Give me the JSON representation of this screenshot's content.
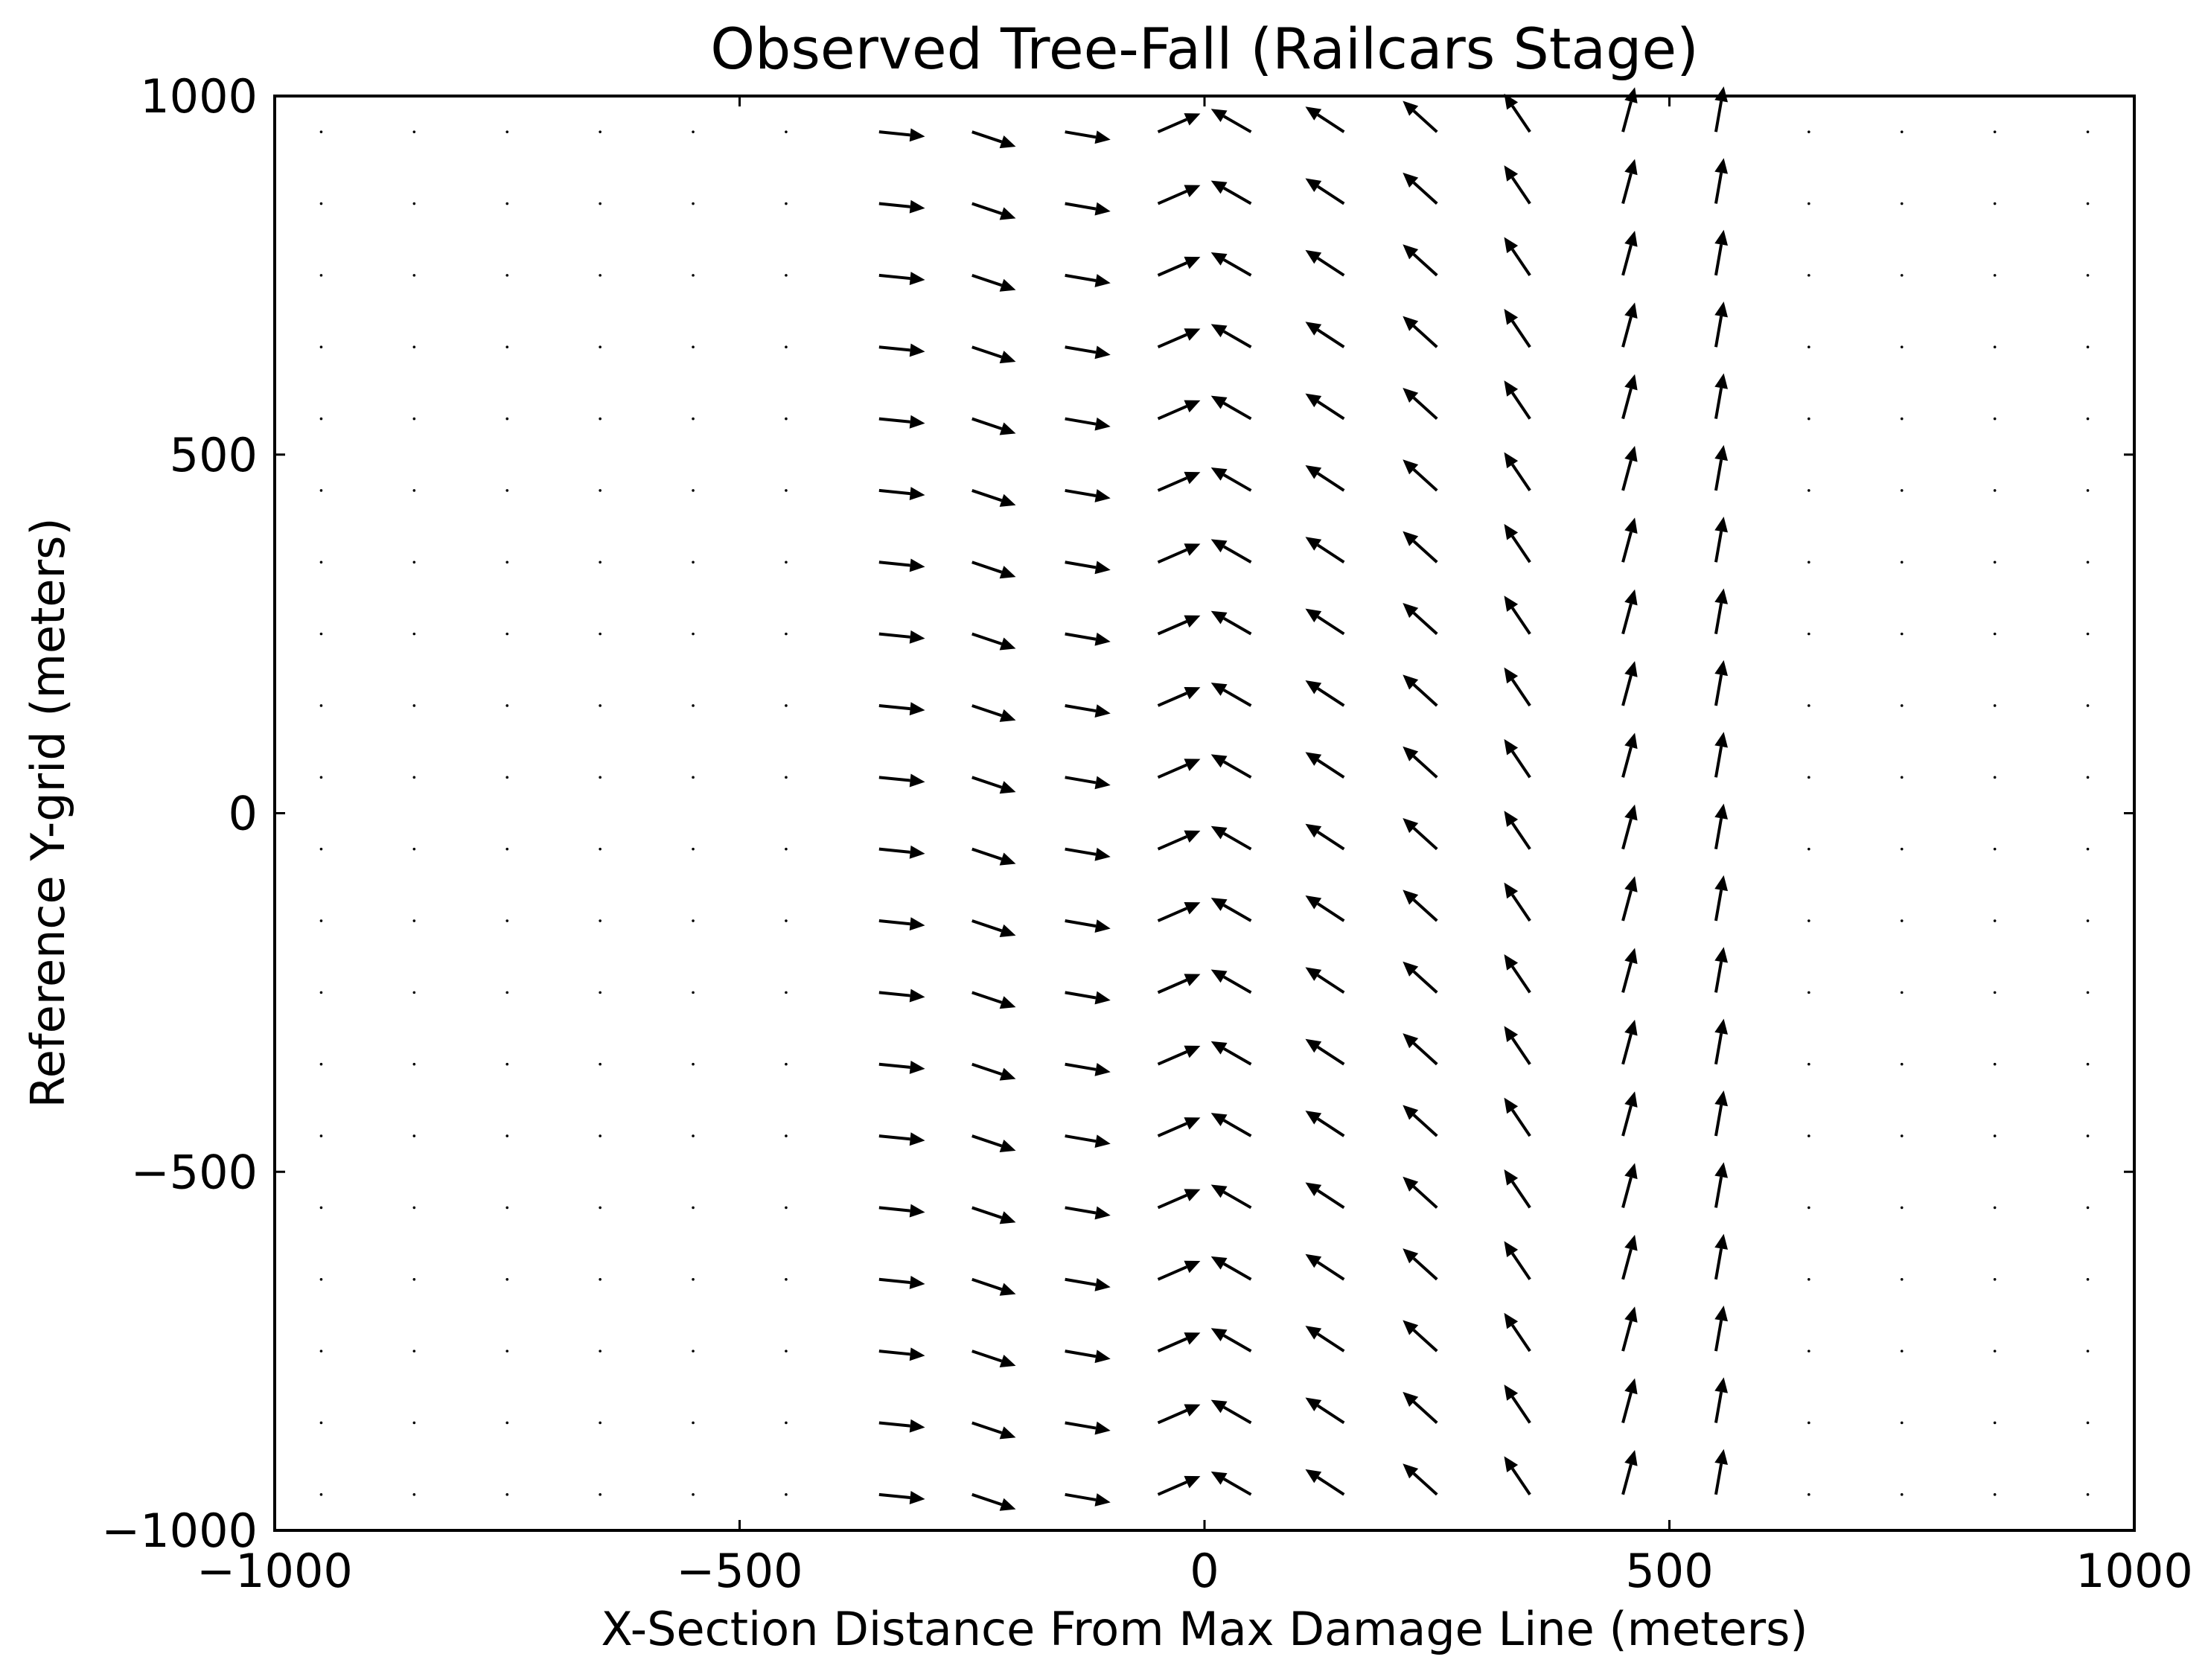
{
  "chart_data": {
    "type": "quiver",
    "title": "Observed Tree-Fall (Railcars Stage)",
    "xlabel": "X-Section Distance From Max Damage Line (meters)",
    "ylabel": "Reference Y-grid (meters)",
    "xlim": [
      -1000,
      1000
    ],
    "ylim": [
      -1000,
      1000
    ],
    "xticks": [
      {
        "value": -1000,
        "label": "−1000"
      },
      {
        "value": -500,
        "label": "−500"
      },
      {
        "value": 0,
        "label": "0"
      },
      {
        "value": 500,
        "label": "500"
      },
      {
        "value": 1000,
        "label": "1000"
      }
    ],
    "yticks": [
      {
        "value": -1000,
        "label": "−1000"
      },
      {
        "value": -500,
        "label": "−500"
      },
      {
        "value": 0,
        "label": "0"
      },
      {
        "value": 500,
        "label": "500"
      },
      {
        "value": 1000,
        "label": "1000"
      }
    ],
    "grid": false,
    "arrow_color": "#000000",
    "x_grid": [
      -950,
      -850,
      -750,
      -650,
      -550,
      -450,
      -350,
      -250,
      -150,
      -50,
      50,
      150,
      250,
      350,
      450,
      550,
      650,
      750,
      850,
      950
    ],
    "y_grid": [
      -950,
      -850,
      -750,
      -650,
      -550,
      -450,
      -350,
      -250,
      -150,
      -50,
      50,
      150,
      250,
      350,
      450,
      550,
      650,
      750,
      850,
      950
    ],
    "columns": [
      {
        "x": -950,
        "u": 0,
        "v": 0
      },
      {
        "x": -850,
        "u": 0,
        "v": 0
      },
      {
        "x": -750,
        "u": 0,
        "v": 0
      },
      {
        "x": -650,
        "u": 0,
        "v": 0
      },
      {
        "x": -550,
        "u": 0,
        "v": 0
      },
      {
        "x": -450,
        "u": 0,
        "v": 0
      },
      {
        "x": -350,
        "u": 1.0,
        "v": -0.1
      },
      {
        "x": -250,
        "u": 0.95,
        "v": -0.32
      },
      {
        "x": -150,
        "u": 0.99,
        "v": -0.17
      },
      {
        "x": -50,
        "u": 0.92,
        "v": 0.4
      },
      {
        "x": 50,
        "u": -0.87,
        "v": 0.5
      },
      {
        "x": 150,
        "u": -0.84,
        "v": 0.55
      },
      {
        "x": 250,
        "u": -0.74,
        "v": 0.67
      },
      {
        "x": 350,
        "u": -0.56,
        "v": 0.83
      },
      {
        "x": 450,
        "u": 0.26,
        "v": 0.97
      },
      {
        "x": 550,
        "u": 0.17,
        "v": 0.98
      },
      {
        "x": 650,
        "u": 0,
        "v": 0
      },
      {
        "x": 750,
        "u": 0,
        "v": 0
      },
      {
        "x": 850,
        "u": 0,
        "v": 0
      },
      {
        "x": 950,
        "u": 0,
        "v": 0
      }
    ]
  }
}
